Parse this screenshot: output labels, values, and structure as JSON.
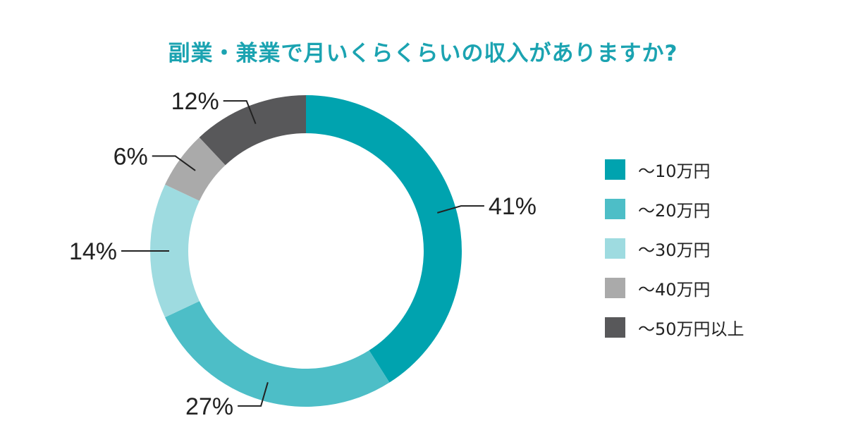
{
  "chart_data": {
    "type": "pie",
    "donut": true,
    "title": "副業・兼業で月いくらくらいの収入がありますか?",
    "categories": [
      "～10万円",
      "～20万円",
      "～30万円",
      "～40万円",
      "～50万円以上"
    ],
    "values": [
      41,
      27,
      14,
      6,
      12
    ],
    "value_labels": [
      "41%",
      "27%",
      "14%",
      "6%",
      "12%"
    ],
    "unit": "%",
    "colors": [
      "#00a3af",
      "#4dbec7",
      "#9edbe0",
      "#aaaaaa",
      "#58585a"
    ],
    "legend_position": "right",
    "start_angle": "12 o'clock",
    "direction": "clockwise"
  }
}
